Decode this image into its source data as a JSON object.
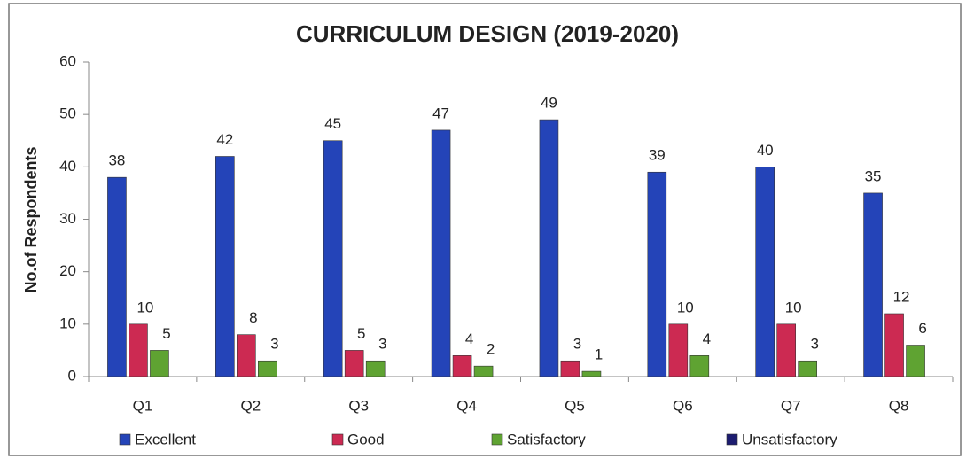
{
  "chart_data": {
    "type": "bar",
    "title": "CURRICULUM DESIGN (2019-2020)",
    "y_label": "No.of Respondents",
    "categories": [
      "Q1",
      "Q2",
      "Q3",
      "Q4",
      "Q5",
      "Q6",
      "Q7",
      "Q8"
    ],
    "series": [
      {
        "name": "Excellent",
        "color": "#2444b8",
        "values": [
          38,
          42,
          45,
          47,
          49,
          39,
          40,
          35
        ]
      },
      {
        "name": "Good",
        "color": "#cc2a52",
        "values": [
          10,
          8,
          5,
          4,
          3,
          10,
          10,
          12
        ]
      },
      {
        "name": "Satisfactory",
        "color": "#5fa332",
        "values": [
          5,
          3,
          3,
          2,
          1,
          4,
          3,
          6
        ]
      },
      {
        "name": "Unsatisfactory",
        "color": "#1c1c70",
        "values": [
          0,
          0,
          0,
          0,
          0,
          0,
          0,
          0
        ]
      }
    ],
    "ylim": [
      0,
      60
    ],
    "yticks": [
      0,
      10,
      20,
      30,
      40,
      50,
      60
    ],
    "legend": "bottom"
  }
}
